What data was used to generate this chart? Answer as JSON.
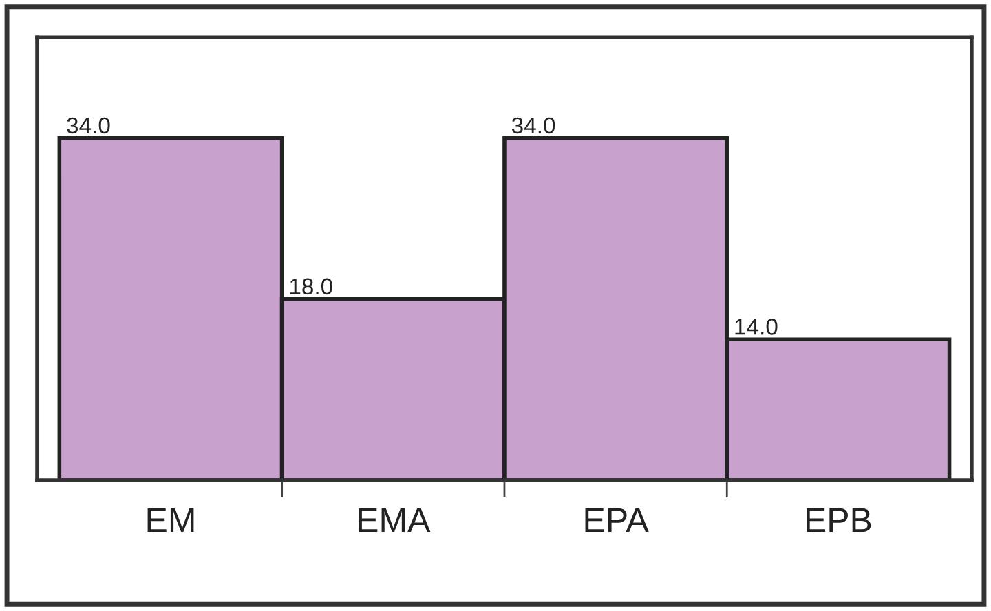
{
  "chart_data": {
    "type": "bar",
    "categories": [
      "EM",
      "EMA",
      "EPA",
      "EPB"
    ],
    "values": [
      34.0,
      18.0,
      34.0,
      14.0
    ],
    "value_labels": [
      "34.0",
      "18.0",
      "34.0",
      "14.0"
    ],
    "color": "#c8a2cc",
    "grid": false,
    "legend": false
  }
}
